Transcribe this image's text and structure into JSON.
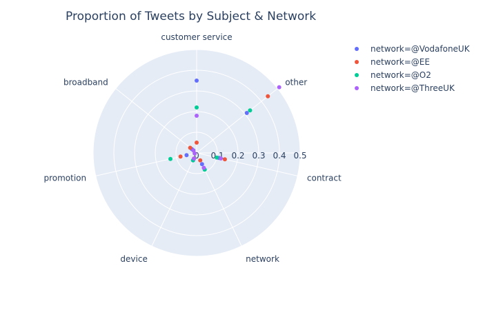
{
  "chart_data": {
    "type": "scatter",
    "subtype": "polar",
    "title": "Proportion of Tweets by Subject & Network",
    "angular_axis": {
      "categories": [
        "customer service",
        "other",
        "contract",
        "network",
        "device",
        "promotion",
        "broadband"
      ],
      "direction": "clockwise",
      "rotation_start": "top"
    },
    "radial_axis": {
      "range": [
        0,
        0.5
      ],
      "ticks": [
        "0",
        "0.1",
        "0.2",
        "0.3",
        "0.4",
        "0.5"
      ],
      "tick_values": [
        0,
        0.1,
        0.2,
        0.3,
        0.4,
        0.5
      ]
    },
    "grid": true,
    "legend_position": "top-right",
    "series": [
      {
        "name": "network=@VodafoneUK",
        "color": "#636efa",
        "values": [
          0.35,
          0.31,
          0.11,
          0.06,
          0.04,
          0.05,
          0.03
        ]
      },
      {
        "name": "network=@EE",
        "color": "#ef553b",
        "values": [
          0.05,
          0.44,
          0.14,
          0.04,
          0.03,
          0.08,
          0.04
        ]
      },
      {
        "name": "network=@O2",
        "color": "#00cc96",
        "values": [
          0.22,
          0.33,
          0.1,
          0.09,
          0.04,
          0.13,
          0.02
        ]
      },
      {
        "name": "network=@ThreeUK",
        "color": "#ab63fa",
        "values": [
          0.18,
          0.51,
          0.12,
          0.08,
          0.03,
          0.01,
          0.02
        ]
      }
    ]
  }
}
